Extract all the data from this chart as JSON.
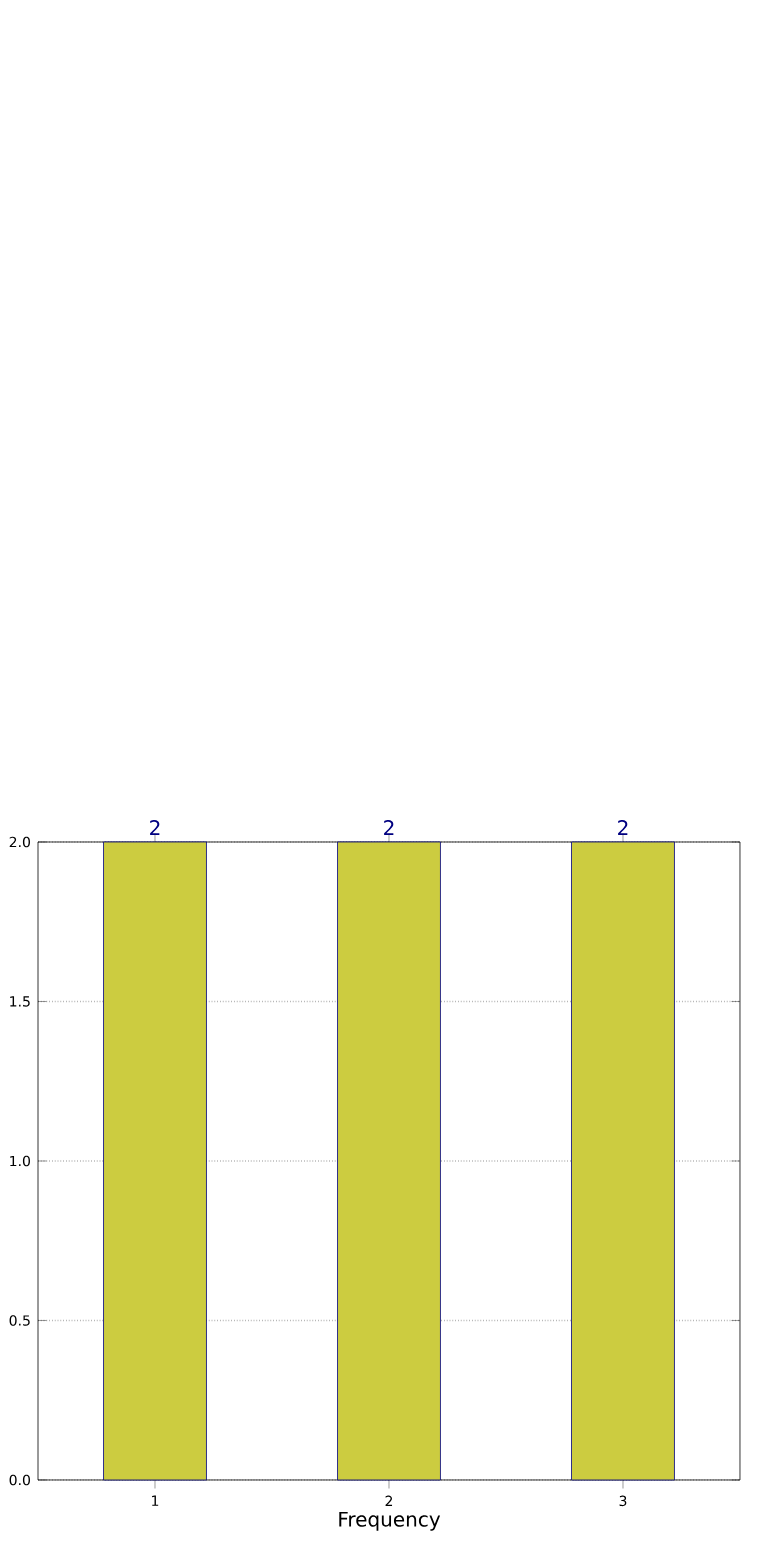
{
  "chart_data": {
    "type": "bar",
    "xlabel": "Frequency",
    "categories": [
      "1",
      "2",
      "3"
    ],
    "series": [
      {
        "color": "#ccccе4",
        "values": [
          2,
          2,
          2
        ]
      }
    ],
    "ylim": [
      0,
      2
    ],
    "yticks": [
      {
        "value": 0,
        "label": "0.0"
      },
      {
        "value": 0.5,
        "label": "0.5"
      },
      {
        "value": 1,
        "label": "1.0"
      },
      {
        "value": 1.5,
        "label": "1.5"
      },
      {
        "value": 2,
        "label": "2.0"
      }
    ],
    "grid": true,
    "data_labels": true
  }
}
